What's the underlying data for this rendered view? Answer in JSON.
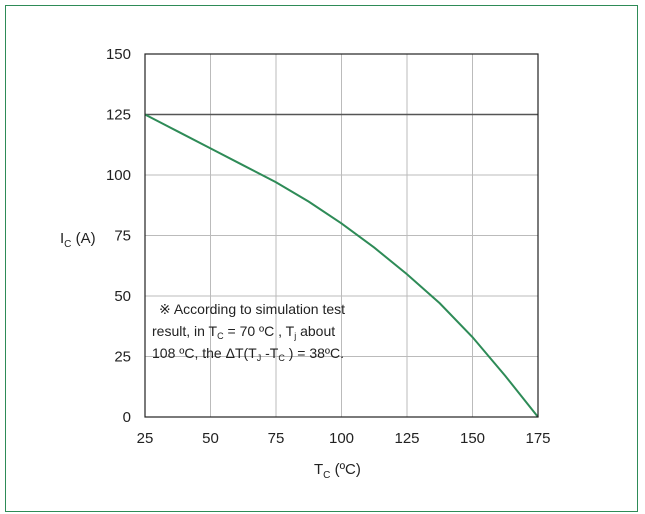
{
  "chart_data": {
    "type": "line",
    "ylabel_main": "I",
    "ylabel_sub": "C",
    "ylabel_unit": " (A)",
    "xlabel_main": "T",
    "xlabel_sub": "C",
    "xlabel_unit": " (ºC)",
    "xlim": [
      25,
      175
    ],
    "ylim": [
      0,
      150
    ],
    "xticks": [
      25,
      50,
      75,
      100,
      125,
      150,
      175
    ],
    "yticks": [
      0,
      25,
      50,
      75,
      100,
      125,
      150
    ],
    "grid": true,
    "limit_line_y": 125,
    "series": [
      {
        "color": "#2e8b57",
        "x": [
          25,
          37.5,
          50,
          62.5,
          75,
          87.5,
          100,
          112.5,
          125,
          137.5,
          150,
          162.5,
          175
        ],
        "y": [
          125,
          118,
          111,
          104,
          97,
          89,
          80,
          70,
          59,
          47,
          33,
          17,
          0
        ]
      }
    ],
    "annotation": {
      "line1": "※ According to simulation test",
      "line2_a": "result, in T",
      "line2_sub1": "C",
      "line2_b": " = 70 ºC , T",
      "line2_sub2": "j",
      "line2_c": " about",
      "line3_a": "108 ºC, the ΔT(T",
      "line3_sub1": "J",
      "line3_b": " -T",
      "line3_sub2": "C",
      "line3_c": " ) = 38ºC."
    }
  },
  "colors": {
    "frame": "#2e8b57",
    "grid": "#bbbbbb",
    "axis": "#222222",
    "limit_line": "#555555",
    "curve": "#2e8b57"
  }
}
